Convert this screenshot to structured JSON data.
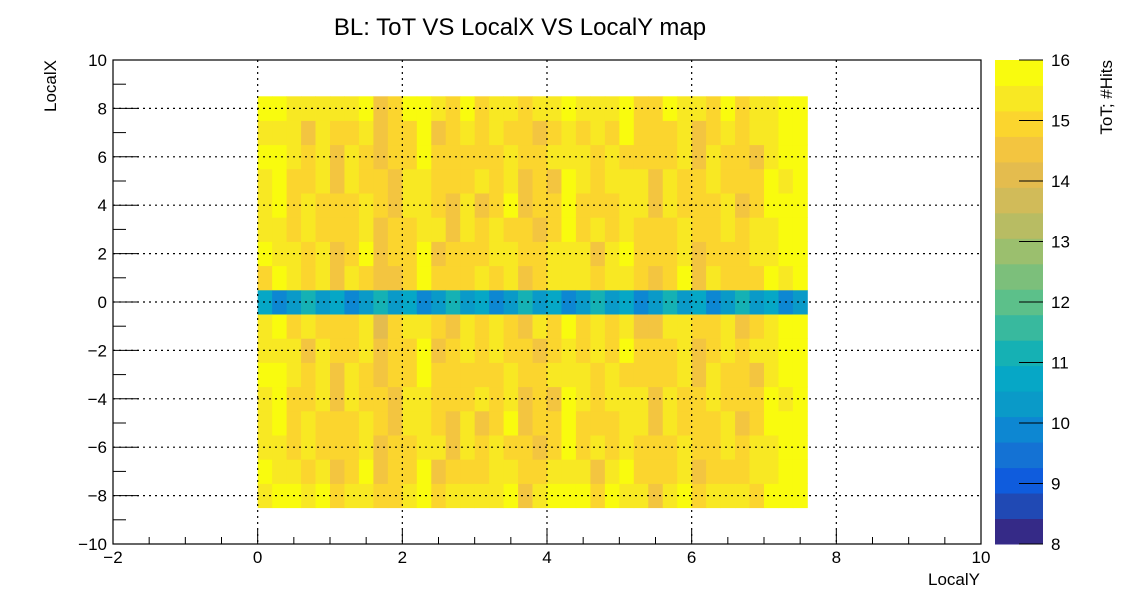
{
  "chart_data": {
    "type": "heatmap",
    "title": "BL: ToT VS LocalX VS LocalY map",
    "xlabel": "LocalY",
    "ylabel": "LocalX",
    "colorbar_label": "ToT; #Hits",
    "xlim": [
      -2,
      10
    ],
    "ylim": [
      -10,
      10
    ],
    "zlim": [
      8,
      16
    ],
    "x_ticks": [
      -2,
      0,
      2,
      4,
      6,
      8,
      10
    ],
    "y_ticks": [
      -10,
      -8,
      -6,
      -4,
      -2,
      0,
      2,
      4,
      6,
      8,
      10
    ],
    "z_ticks": [
      8,
      9,
      10,
      11,
      12,
      13,
      14,
      15,
      16
    ],
    "grid": true,
    "legend_placement": "right colorbar",
    "x_bin_edges_range": [
      0,
      7.6
    ],
    "x_bin_count": 38,
    "y_bin_edges_range": [
      -8.5,
      8.5
    ],
    "y_bin_count": 17,
    "column_means": [
      15.4,
      15.7,
      15.1,
      15.0,
      15.2,
      14.8,
      15.1,
      15.3,
      14.6,
      14.8,
      15.1,
      15.5,
      14.9,
      14.8,
      15.2,
      15.0,
      15.1,
      15.3,
      14.7,
      14.9,
      15.0,
      15.6,
      15.1,
      15.0,
      15.2,
      15.4,
      15.0,
      14.7,
      15.1,
      15.3,
      14.8,
      15.0,
      15.2,
      14.9,
      15.0,
      15.5,
      15.7,
      15.9
    ],
    "central_row_range": [
      -0.5,
      0.5
    ],
    "central_row_mean": 10.5,
    "colormap": [
      "#352a87",
      "#2049b4",
      "#0f5cdd",
      "#1472d4",
      "#0d87d2",
      "#0a9ac8",
      "#06a7c6",
      "#15b1b4",
      "#38b99e",
      "#5cc08a",
      "#7cbf7b",
      "#9bbf6e",
      "#b8bc63",
      "#d1bb59",
      "#e4bc4e",
      "#f3c540",
      "#fbd52e",
      "#f8e823",
      "#f9fb0e"
    ]
  }
}
